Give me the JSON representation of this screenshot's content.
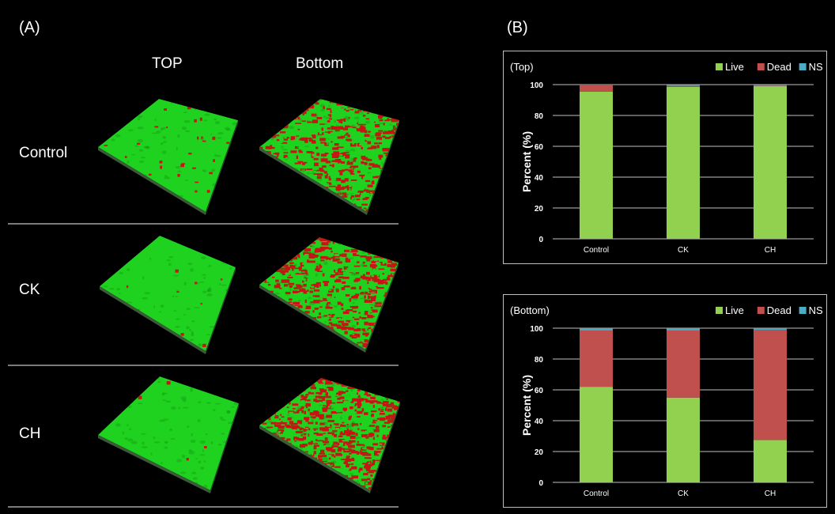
{
  "panel_a": {
    "label": "(A)",
    "columns": [
      "TOP",
      "Bottom"
    ],
    "rows": [
      "Control",
      "CK",
      "CH"
    ]
  },
  "panel_b": {
    "label": "(B)"
  },
  "colors": {
    "live": "#92d050",
    "dead": "#c0504d",
    "ns": "#4bacc6",
    "slab_green": "#1fd21f",
    "slab_red": "#c81414"
  },
  "chart_data": [
    {
      "type": "bar",
      "stacked": true,
      "title": "(Top)",
      "ylabel": "Percent (%)",
      "xlabel": "",
      "ylim": [
        0,
        100
      ],
      "yticks": [
        0,
        20,
        40,
        60,
        80,
        100
      ],
      "grid": true,
      "legend": "top-right",
      "categories": [
        "Control",
        "CK",
        "CH"
      ],
      "series": [
        {
          "name": "Live",
          "values": [
            95.5,
            98.5,
            99.0
          ]
        },
        {
          "name": "Dead",
          "values": [
            4.5,
            0.7,
            0.3
          ]
        },
        {
          "name": "NS",
          "values": [
            0.0,
            0.8,
            0.7
          ]
        }
      ]
    },
    {
      "type": "bar",
      "stacked": true,
      "title": "(Bottom)",
      "ylabel": "Percent (%)",
      "xlabel": "",
      "ylim": [
        0,
        100
      ],
      "yticks": [
        0,
        20,
        40,
        60,
        80,
        100
      ],
      "grid": true,
      "legend": "top-right",
      "categories": [
        "Control",
        "CK",
        "CH"
      ],
      "series": [
        {
          "name": "Live",
          "values": [
            62,
            55,
            27.5
          ]
        },
        {
          "name": "Dead",
          "values": [
            36.5,
            43.5,
            71.5
          ]
        },
        {
          "name": "NS",
          "values": [
            1.5,
            1.5,
            1.0
          ]
        }
      ]
    }
  ]
}
